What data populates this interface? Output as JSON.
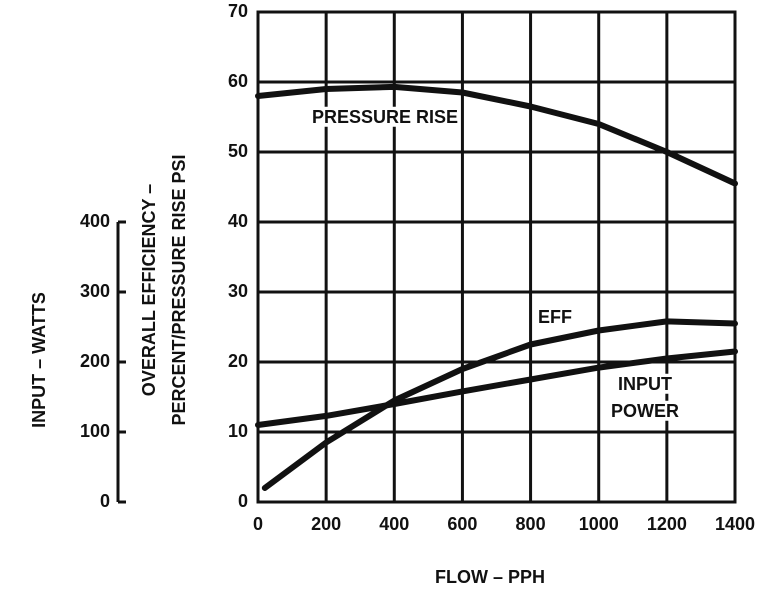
{
  "chart_data": {
    "type": "line",
    "xlabel": "FLOW – PPH",
    "ylabel": [
      "OVERALL EFFICIENCY –",
      "PERCENT/PRESSURE RISE PSI"
    ],
    "y2label": "INPUT – WATTS",
    "xlim": [
      0,
      1400
    ],
    "xticks": [
      0,
      200,
      400,
      600,
      800,
      1000,
      1200,
      1400
    ],
    "ylim": [
      0,
      70
    ],
    "yticks": [
      0,
      10,
      20,
      30,
      40,
      50,
      60,
      70
    ],
    "y2lim": [
      0,
      700
    ],
    "y2ticks": [
      0,
      100,
      200,
      300,
      400
    ],
    "grid": true,
    "series": [
      {
        "color": "#111111",
        "x": [
          0,
          200,
          400,
          600,
          800,
          1000,
          1200,
          1400
        ],
        "values": [
          58,
          59,
          59.3,
          58.5,
          56.5,
          54,
          50,
          45.5
        ]
      },
      {
        "color": "#111111",
        "x": [
          20,
          200,
          400,
          600,
          800,
          1000,
          1200,
          1400
        ],
        "values": [
          2,
          8.5,
          14.5,
          19,
          22.5,
          24.5,
          25.8,
          25.5
        ]
      },
      {
        "color": "#111111",
        "axis": "y2",
        "x": [
          0,
          200,
          400,
          600,
          800,
          1000,
          1200,
          1400
        ],
        "values": [
          110,
          123,
          140,
          158,
          175,
          192,
          205,
          215
        ]
      }
    ],
    "annotations": [
      "PRESSURE RISE",
      "EFF",
      "INPUT",
      "POWER"
    ]
  }
}
